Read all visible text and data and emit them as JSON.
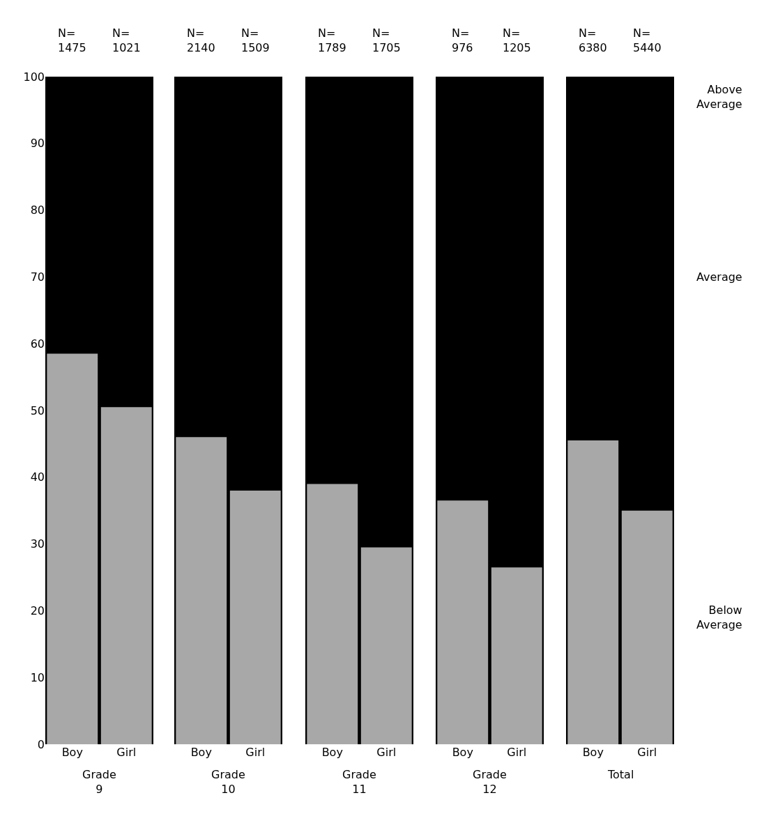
{
  "chart_data": [
    {
      "type": "bar",
      "categories": [
        "Boy",
        "Girl"
      ],
      "xlabel": "Grade\n9",
      "series": [
        {
          "color": "#a8a8a8",
          "values": [
            58.5,
            50.5
          ]
        }
      ],
      "ylim": [
        0,
        100
      ],
      "yticks": [
        0,
        10,
        20,
        30,
        40,
        50,
        60,
        70,
        80,
        90,
        100
      ],
      "grid": false,
      "annotations": [
        "N=\n1475",
        "N=\n1021"
      ]
    },
    {
      "type": "bar",
      "categories": [
        "Boy",
        "Girl"
      ],
      "xlabel": "Grade\n10",
      "series": [
        {
          "color": "#a8a8a8",
          "values": [
            46,
            38
          ]
        }
      ],
      "ylim": [
        0,
        100
      ],
      "yticks": [
        0,
        10,
        20,
        30,
        40,
        50,
        60,
        70,
        80,
        90,
        100
      ],
      "tick_labels": "x",
      "grid": false,
      "annotations": [
        "N=\n2140",
        "N=\n1509"
      ]
    },
    {
      "type": "bar",
      "categories": [
        "Boy",
        "Girl"
      ],
      "xlabel": "Grade\n11",
      "series": [
        {
          "color": "#a8a8a8",
          "values": [
            39,
            29.5
          ]
        }
      ],
      "ylim": [
        0,
        100
      ],
      "yticks": [
        0,
        10,
        20,
        30,
        40,
        50,
        60,
        70,
        80,
        90,
        100
      ],
      "tick_labels": "x",
      "grid": false,
      "annotations": [
        "N=\n1789",
        "N=\n1705"
      ]
    },
    {
      "type": "bar",
      "categories": [
        "Boy",
        "Girl"
      ],
      "xlabel": "Grade\n12",
      "series": [
        {
          "color": "#a8a8a8",
          "values": [
            36.5,
            26.5
          ]
        }
      ],
      "ylim": [
        0,
        100
      ],
      "yticks": [
        0,
        10,
        20,
        30,
        40,
        50,
        60,
        70,
        80,
        90,
        100
      ],
      "tick_labels": "x",
      "grid": false,
      "annotations": [
        "N=\n976",
        "N=\n1205"
      ]
    },
    {
      "type": "bar",
      "categories": [
        "Boy",
        "Girl"
      ],
      "xlabel": "Total",
      "series": [
        {
          "color": "#a8a8a8",
          "values": [
            45.5,
            35
          ]
        }
      ],
      "ylim": [
        0,
        100
      ],
      "yticks": [
        0,
        10,
        20,
        30,
        40,
        50,
        60,
        70,
        80,
        90,
        100
      ],
      "tick_labels": "x",
      "grid": false,
      "annotations": [
        "N=\n6380",
        "N=\n5440",
        "Above\nAverage",
        "Average",
        "Below\nAverage"
      ]
    }
  ]
}
